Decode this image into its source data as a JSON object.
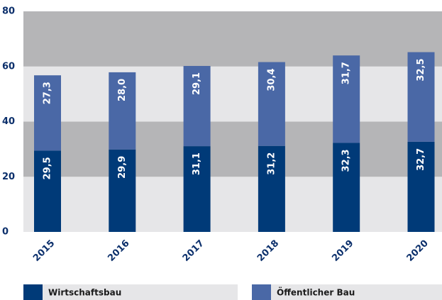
{
  "chart_data": {
    "type": "stacked_bar",
    "categories": [
      "2015",
      "2016",
      "2017",
      "2018",
      "2019",
      "2020"
    ],
    "series": [
      {
        "name": "Wirtschaftsbau",
        "color": "#003a78",
        "values": [
          29.5,
          29.9,
          31.1,
          31.2,
          32.3,
          32.7
        ],
        "value_labels": [
          "29,5",
          "29,9",
          "31,1",
          "31,2",
          "32,3",
          "32,7"
        ]
      },
      {
        "name": "Öffentlicher Bau",
        "color": "#4a68a6",
        "values": [
          27.3,
          28.0,
          29.1,
          30.4,
          31.7,
          32.5
        ],
        "value_labels": [
          "27,3",
          "28,0",
          "29,1",
          "30,4",
          "31,7",
          "32,5"
        ]
      }
    ],
    "ylim": [
      0,
      80
    ],
    "yticks": [
      0,
      20,
      40,
      60,
      80
    ],
    "grid": true
  }
}
